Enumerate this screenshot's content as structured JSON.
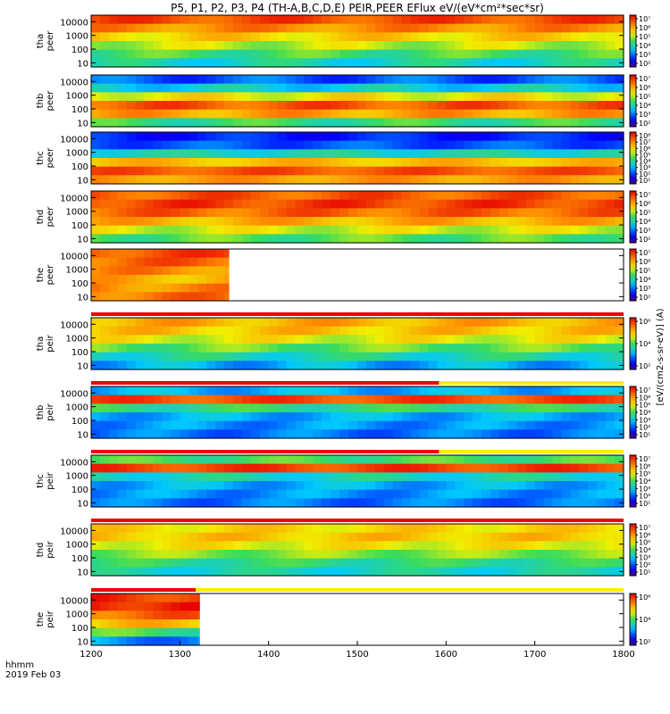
{
  "title": "P5, P1, P2, P3, P4 (TH-A,B,C,D,E) PEIR,PEER EFlux eV/(eV*cm²*sec*sr)",
  "time_axis": {
    "label": "hhmm",
    "date": "2019 Feb 03",
    "ticks": [
      "1200",
      "1300",
      "1400",
      "1500",
      "1600",
      "1700",
      "1800"
    ],
    "range": [
      1200,
      1800
    ]
  },
  "energy_ticks": [
    "10000",
    "1000",
    "100",
    "10"
  ],
  "colorbar_label": "[eV/(cm2-s-sr-eV)] (A)",
  "chart_data": [
    {
      "type": "heatmap",
      "ylabel_top": "tha",
      "ylabel_bottom": "peer",
      "yscale": "log",
      "ylim": [
        5,
        30000
      ],
      "data_end": 1800,
      "colorbar_ticks": [
        "10⁷",
        "10⁶",
        "10⁵",
        "10⁴",
        "10³",
        "10²"
      ],
      "cmin": 2,
      "cmax": 7.5,
      "base": [
        6.9,
        6.4,
        5.8,
        5.3,
        4.7,
        4.2
      ],
      "flag": null
    },
    {
      "type": "heatmap",
      "ylabel_top": "thb",
      "ylabel_bottom": "peer",
      "yscale": "log",
      "ylim": [
        5,
        30000
      ],
      "data_end": 1800,
      "colorbar_ticks": [
        "10⁷",
        "10⁶",
        "10⁵",
        "10⁴",
        "10³",
        "10²"
      ],
      "cmin": 2,
      "cmax": 7.5,
      "base": [
        3.2,
        4.0,
        5.6,
        6.8,
        6.2,
        4.6
      ],
      "flag": null
    },
    {
      "type": "heatmap",
      "ylabel_top": "thc",
      "ylabel_bottom": "peer",
      "yscale": "log",
      "ylim": [
        5,
        30000
      ],
      "data_end": 1800,
      "colorbar_ticks": [
        "10⁸",
        "10⁷",
        "10⁶",
        "10⁵",
        "10⁴",
        "10³",
        "10²",
        "10¹"
      ],
      "cmin": 1,
      "cmax": 8.5,
      "base": [
        2.2,
        2.6,
        4.0,
        6.4,
        7.6,
        6.8
      ],
      "flag": null
    },
    {
      "type": "heatmap",
      "ylabel_top": "thd",
      "ylabel_bottom": "peer",
      "yscale": "log",
      "ylim": [
        5,
        30000
      ],
      "data_end": 1800,
      "colorbar_ticks": [
        "10⁷",
        "10⁶",
        "10⁵",
        "10⁴",
        "10³",
        "10²"
      ],
      "cmin": 2,
      "cmax": 7.5,
      "base": [
        6.8,
        7.0,
        6.7,
        6.1,
        5.4,
        4.8
      ],
      "flag": null
    },
    {
      "type": "heatmap",
      "ylabel_top": "the",
      "ylabel_bottom": "peer",
      "yscale": "log",
      "ylim": [
        5,
        30000
      ],
      "data_end": 1355,
      "colorbar_ticks": [
        "10⁷",
        "10⁶",
        "10⁵",
        "10⁴",
        "10³",
        "10²"
      ],
      "cmin": 2,
      "cmax": 7.5,
      "base": [
        6.9,
        6.7,
        6.4,
        6.1,
        6.4,
        6.6
      ],
      "flag": null
    },
    {
      "type": "heatmap",
      "ylabel_top": "tha",
      "ylabel_bottom": "peir",
      "yscale": "log",
      "ylim": [
        5,
        30000
      ],
      "data_end": 1800,
      "colorbar_ticks": [
        "10⁶",
        "10⁴",
        "10²"
      ],
      "cmin": 1.5,
      "cmax": 7,
      "base": [
        5.6,
        5.4,
        5.0,
        4.4,
        3.8,
        3.2
      ],
      "flag": {
        "red_until": 1800,
        "yellow_until": 1800
      }
    },
    {
      "type": "heatmap",
      "ylabel_top": "thb",
      "ylabel_bottom": "peir",
      "yscale": "log",
      "ylim": [
        5,
        30000
      ],
      "data_end": 1800,
      "colorbar_ticks": [
        "10⁷",
        "10⁶",
        "10⁵",
        "10⁴",
        "10³",
        "10²",
        "10¹"
      ],
      "cmin": 1,
      "cmax": 7.5,
      "base": [
        3.0,
        6.8,
        4.0,
        3.0,
        2.8,
        2.6
      ],
      "flag": {
        "red_until": 1592,
        "yellow_until": 1800
      }
    },
    {
      "type": "heatmap",
      "ylabel_top": "thc",
      "ylabel_bottom": "peir",
      "yscale": "log",
      "ylim": [
        5,
        30000
      ],
      "data_end": 1800,
      "colorbar_ticks": [
        "10⁷",
        "10⁶",
        "10⁵",
        "10⁴",
        "10³",
        "10²",
        "10¹"
      ],
      "cmin": 1,
      "cmax": 7.5,
      "base": [
        4.2,
        6.9,
        3.6,
        3.0,
        2.8,
        2.6
      ],
      "flag": {
        "red_until": 1592,
        "yellow_until": 1800
      }
    },
    {
      "type": "heatmap",
      "ylabel_top": "thd",
      "ylabel_bottom": "peir",
      "yscale": "log",
      "ylim": [
        5,
        30000
      ],
      "data_end": 1800,
      "colorbar_ticks": [
        "10⁷",
        "10⁶",
        "10⁵",
        "10⁴",
        "10³",
        "10²",
        "10¹"
      ],
      "cmin": 1,
      "cmax": 7.5,
      "base": [
        5.4,
        5.6,
        5.2,
        4.6,
        4.0,
        3.6
      ],
      "flag": {
        "red_until": 1800,
        "yellow_until": 1800
      }
    },
    {
      "type": "heatmap",
      "ylabel_top": "the",
      "ylabel_bottom": "peir",
      "yscale": "log",
      "ylim": [
        5,
        30000
      ],
      "data_end": 1322,
      "colorbar_ticks": [
        "10⁶",
        "10⁴",
        "10²"
      ],
      "cmin": 1.5,
      "cmax": 7,
      "base": [
        6.6,
        6.8,
        6.2,
        5.4,
        4.2,
        3.0
      ],
      "flag": {
        "red_until": 1318,
        "yellow_until": 1800
      }
    }
  ]
}
